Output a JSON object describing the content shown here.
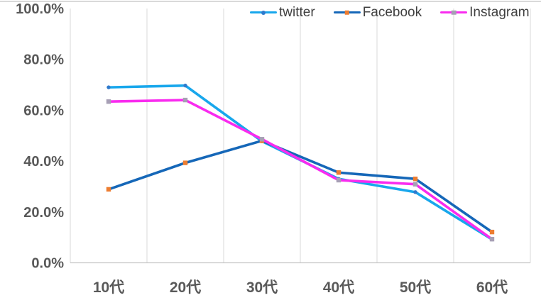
{
  "chart_data": {
    "type": "line",
    "title": "",
    "xlabel": "",
    "ylabel": "",
    "categories": [
      "10代",
      "20代",
      "30代",
      "40代",
      "50代",
      "60代"
    ],
    "series": [
      {
        "name": "twitter",
        "color": "#18A7EC",
        "marker": "circle",
        "marker_color": "#2E7ACD",
        "values": [
          69.0,
          69.7,
          47.8,
          33.0,
          27.8,
          9.2
        ]
      },
      {
        "name": "Facebook",
        "color": "#1567B8",
        "marker": "square",
        "marker_color": "#ED7D31",
        "values": [
          28.9,
          39.3,
          48.0,
          35.5,
          33.0,
          12.1
        ]
      },
      {
        "name": "Instagram",
        "color": "#F92BEF",
        "marker": "square",
        "marker_color": "#A79FB5",
        "values": [
          63.4,
          64.0,
          48.6,
          32.5,
          30.9,
          9.3
        ]
      }
    ],
    "y_ticks": [
      "100.0%",
      "80.0%",
      "60.0%",
      "40.0%",
      "20.0%",
      "0.0%"
    ],
    "ylim": [
      0,
      100
    ],
    "grid": "vertical",
    "legend_position": "top-right",
    "colors": {
      "background": "#FFFFFF",
      "top_border": "#D9D9D9",
      "gridline": "#D9D9D9",
      "axis_line": "#C6C6C6",
      "axis_label": "#595959",
      "legend_text": "#404040"
    }
  }
}
